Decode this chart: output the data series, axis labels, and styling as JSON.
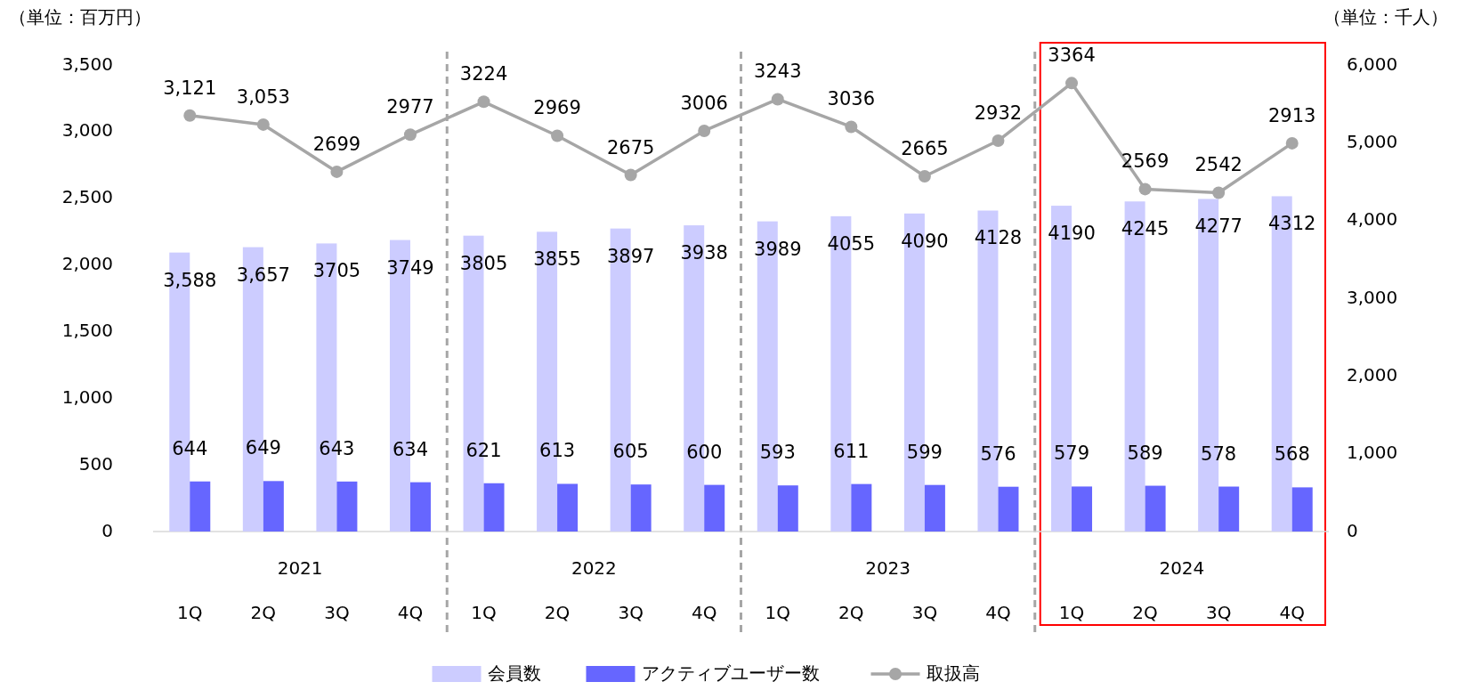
{
  "chart_data": {
    "type": "bar",
    "ylabel": "（単位：百万円）",
    "y2label": "（単位：千人）",
    "categories": [
      "1Q",
      "2Q",
      "3Q",
      "4Q",
      "1Q",
      "2Q",
      "3Q",
      "4Q",
      "1Q",
      "2Q",
      "3Q",
      "4Q",
      "1Q",
      "2Q",
      "3Q",
      "4Q"
    ],
    "annotations": [
      "2021",
      "2022",
      "2023",
      "2024"
    ],
    "series": [
      {
        "name": "会員数",
        "axis": "y2",
        "color": "#ccccff",
        "values": [
          3588,
          3657,
          3705,
          3749,
          3805,
          3855,
          3897,
          3938,
          3989,
          4055,
          4090,
          4128,
          4190,
          4245,
          4277,
          4312
        ],
        "value_labels": [
          "3,588",
          "3,657",
          "3705",
          "3749",
          "3805",
          "3855",
          "3897",
          "3938",
          "3989",
          "4055",
          "4090",
          "4128",
          "4190",
          "4245",
          "4277",
          "4312"
        ]
      },
      {
        "name": "アクティブユーザー数",
        "axis": "y2",
        "color": "#6666ff",
        "values": [
          644,
          649,
          643,
          634,
          621,
          613,
          605,
          600,
          593,
          611,
          599,
          576,
          579,
          589,
          578,
          568
        ],
        "value_labels": [
          "644",
          "649",
          "643",
          "634",
          "621",
          "613",
          "605",
          "600",
          "593",
          "611",
          "599",
          "576",
          "579",
          "589",
          "578",
          "568"
        ]
      },
      {
        "name": "取扱高",
        "type": "line",
        "color": "#a6a6a6",
        "marker": "circle",
        "values": [
          3121,
          3053,
          2699,
          2977,
          3224,
          2969,
          2675,
          3006,
          3243,
          3036,
          2665,
          2932,
          3364,
          2569,
          2542,
          2913
        ],
        "value_labels": [
          "3,121",
          "3,053",
          "2699",
          "2977",
          "3224",
          "2969",
          "2675",
          "3006",
          "3243",
          "3036",
          "2665",
          "2932",
          "3364",
          "2569",
          "2542",
          "2913"
        ]
      }
    ],
    "ylim": [
      0,
      3500
    ],
    "yticks": [
      0,
      500,
      {
        "value": 1000,
        "label": "1,000"
      },
      {
        "value": 1500,
        "label": "1,500"
      },
      {
        "value": 2000,
        "label": "2,000"
      },
      {
        "value": 2500,
        "label": "2,500"
      },
      {
        "value": 3000,
        "label": "3,000"
      },
      {
        "value": 3500,
        "label": "3,500"
      }
    ],
    "y2lim": [
      0,
      6000
    ],
    "y2ticks": [
      0,
      {
        "value": 1000,
        "label": "1,000"
      },
      {
        "value": 2000,
        "label": "2,000"
      },
      {
        "value": 3000,
        "label": "3,000"
      },
      {
        "value": 4000,
        "label": "4,000"
      },
      {
        "value": 5000,
        "label": "5,000"
      },
      {
        "value": 6000,
        "label": "6,000"
      }
    ],
    "legend": "bottom"
  }
}
